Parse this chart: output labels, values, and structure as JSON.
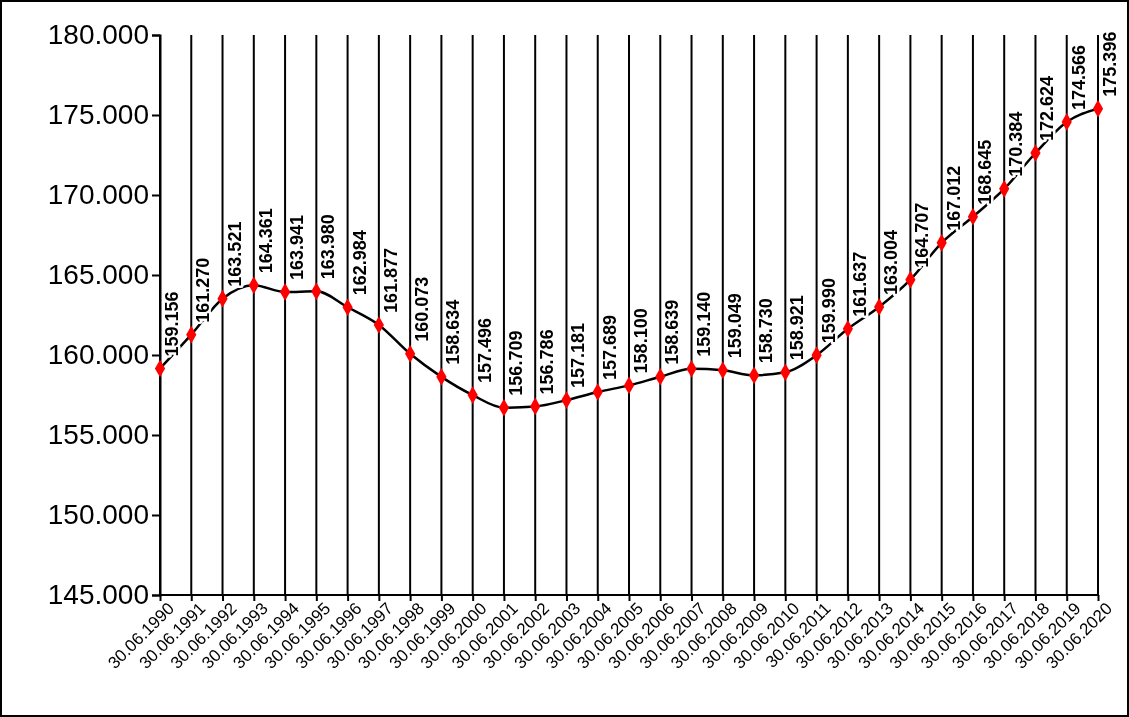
{
  "chart_data": {
    "type": "line",
    "categories": [
      "30.06.1990",
      "30.06.1991",
      "30.06.1992",
      "30.06.1993",
      "30.06.1994",
      "30.06.1995",
      "30.06.1996",
      "30.06.1997",
      "30.06.1998",
      "30.06.1999",
      "30.06.2000",
      "30.06.2001",
      "30.06.2002",
      "30.06.2003",
      "30.06.2004",
      "30.06.2005",
      "30.06.2006",
      "30.06.2007",
      "30.06.2008",
      "30.06.2009",
      "30.06.2010",
      "30.06.2011",
      "30.06.2012",
      "30.06.2013",
      "30.06.2014",
      "30.06.2015",
      "30.06.2016",
      "30.06.2017",
      "30.06.2018",
      "30.06.2019",
      "30.06.2020"
    ],
    "series": [
      {
        "color": "#ff0000",
        "values": [
          159156,
          161270,
          163521,
          164361,
          163941,
          163980,
          162984,
          161877,
          160073,
          158634,
          157496,
          156709,
          156786,
          157181,
          157689,
          158100,
          158639,
          159140,
          159049,
          158730,
          158921,
          159990,
          161637,
          163004,
          164707,
          167012,
          168645,
          170384,
          172624,
          174566,
          175396
        ],
        "value_labels": [
          "159.156",
          "161.270",
          "163.521",
          "164.361",
          "163.941",
          "163.980",
          "162.984",
          "161.877",
          "160.073",
          "158.634",
          "157.496",
          "156.709",
          "156.786",
          "157.181",
          "157.689",
          "158.100",
          "158.639",
          "159.140",
          "159.049",
          "158.730",
          "158.921",
          "159.990",
          "161.637",
          "163.004",
          "164.707",
          "167.012",
          "168.645",
          "170.384",
          "172.624",
          "174.566",
          "175.396"
        ]
      }
    ],
    "ylim": [
      145000,
      180000
    ],
    "yticks": [
      {
        "value": 145000,
        "label": "145.000"
      },
      {
        "value": 150000,
        "label": "150.000"
      },
      {
        "value": 155000,
        "label": "155.000"
      },
      {
        "value": 160000,
        "label": "160.000"
      },
      {
        "value": 165000,
        "label": "165.000"
      },
      {
        "value": 170000,
        "label": "170.000"
      },
      {
        "value": 175000,
        "label": "175.000"
      },
      {
        "value": 180000,
        "label": "180.000"
      }
    ],
    "grid": "x",
    "marker": "diamond",
    "line_style": "solid"
  }
}
